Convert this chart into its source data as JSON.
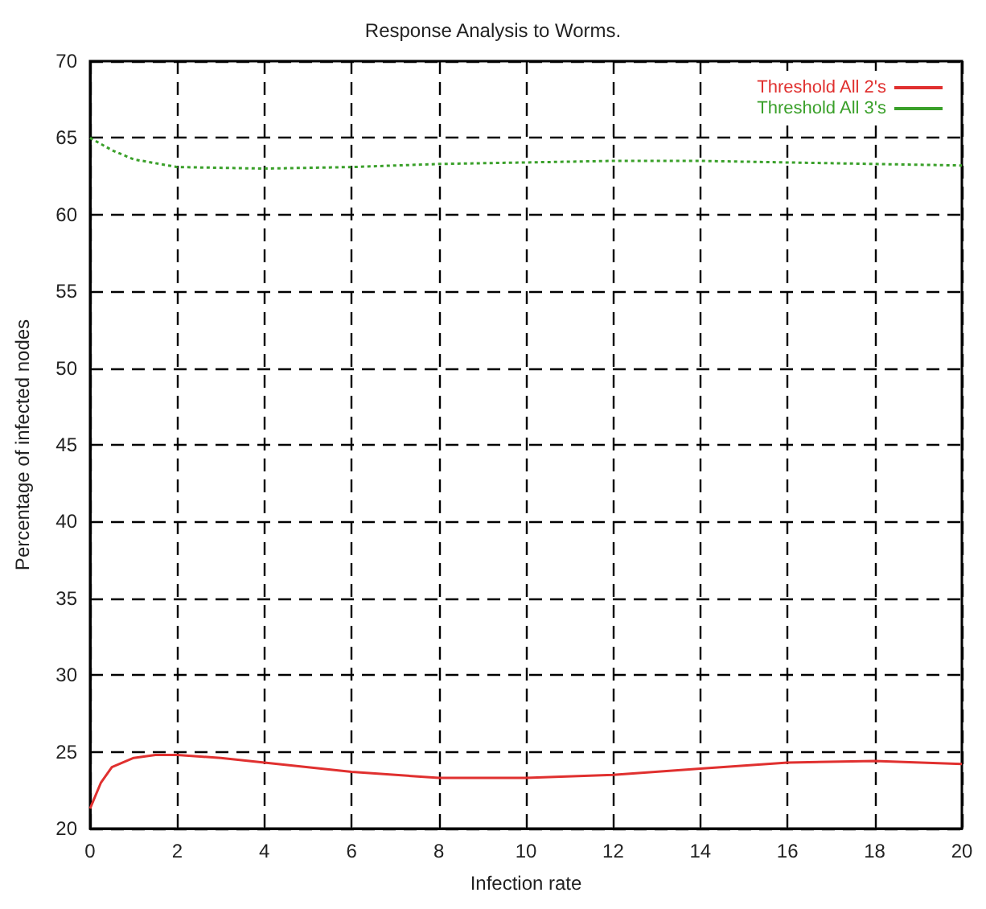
{
  "chart_data": {
    "type": "line",
    "title": "Response Analysis to Worms.",
    "xlabel": "Infection rate",
    "ylabel": "Percentage of infected nodes",
    "xlim": [
      0,
      20
    ],
    "xticks": [
      0,
      2,
      4,
      6,
      8,
      10,
      12,
      14,
      16,
      18,
      20
    ],
    "ylim": [
      20,
      70
    ],
    "yticks": [
      20,
      25,
      30,
      35,
      40,
      45,
      50,
      55,
      60,
      65,
      70
    ],
    "grid": true,
    "legend": "top right",
    "marker": "none",
    "series": [
      {
        "name": "Threshold All 2's",
        "color": "#e0302f",
        "line_style": "solid",
        "x": [
          0,
          0.25,
          0.5,
          1,
          1.5,
          2,
          3,
          4,
          6,
          8,
          10,
          12,
          14,
          16,
          18,
          20
        ],
        "values": [
          21.3,
          23,
          24,
          24.6,
          24.8,
          24.8,
          24.6,
          24.3,
          23.7,
          23.3,
          23.3,
          23.5,
          23.9,
          24.3,
          24.4,
          24.2
        ]
      },
      {
        "name": "Threshold All 3's",
        "color": "#3aa02a",
        "line_style": "dotted",
        "x": [
          0,
          0.5,
          1,
          2,
          4,
          6,
          8,
          10,
          12,
          14,
          16,
          18,
          20
        ],
        "values": [
          65,
          64.2,
          63.6,
          63.1,
          63,
          63.1,
          63.3,
          63.4,
          63.5,
          63.5,
          63.4,
          63.3,
          63.2
        ]
      }
    ]
  }
}
